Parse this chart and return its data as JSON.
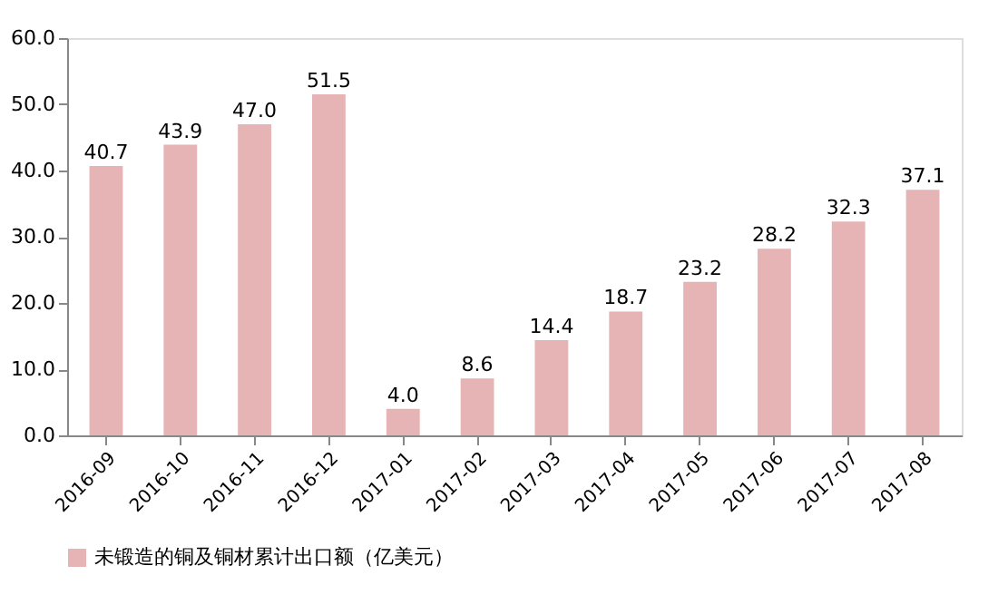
{
  "chart_data": {
    "type": "bar",
    "categories": [
      "2016-09",
      "2016-10",
      "2016-11",
      "2016-12",
      "2017-01",
      "2017-02",
      "2017-03",
      "2017-04",
      "2017-05",
      "2017-06",
      "2017-07",
      "2017-08"
    ],
    "series": [
      {
        "name": "未锻造的铜及铜材累计出口额（亿美元）",
        "color": "#e6b4b4",
        "values": [
          40.7,
          43.9,
          47.0,
          51.5,
          4.0,
          8.6,
          14.4,
          18.7,
          23.2,
          28.2,
          32.3,
          37.1
        ]
      }
    ],
    "ylim": [
      0,
      60
    ],
    "yticks": [
      {
        "value": 0,
        "label": "0.0"
      },
      {
        "value": 10,
        "label": "10.0"
      },
      {
        "value": 20,
        "label": "20.0"
      },
      {
        "value": 30,
        "label": "30.0"
      },
      {
        "value": 40,
        "label": "40.0"
      },
      {
        "value": 50,
        "label": "50.0"
      },
      {
        "value": 60,
        "label": "60.0"
      }
    ],
    "value_labels": [
      "40.7",
      "43.9",
      "47.0",
      "51.5",
      "4.0",
      "8.6",
      "14.4",
      "18.7",
      "23.2",
      "28.2",
      "32.3",
      "37.1"
    ],
    "grid": false,
    "legend": "bottom left"
  }
}
